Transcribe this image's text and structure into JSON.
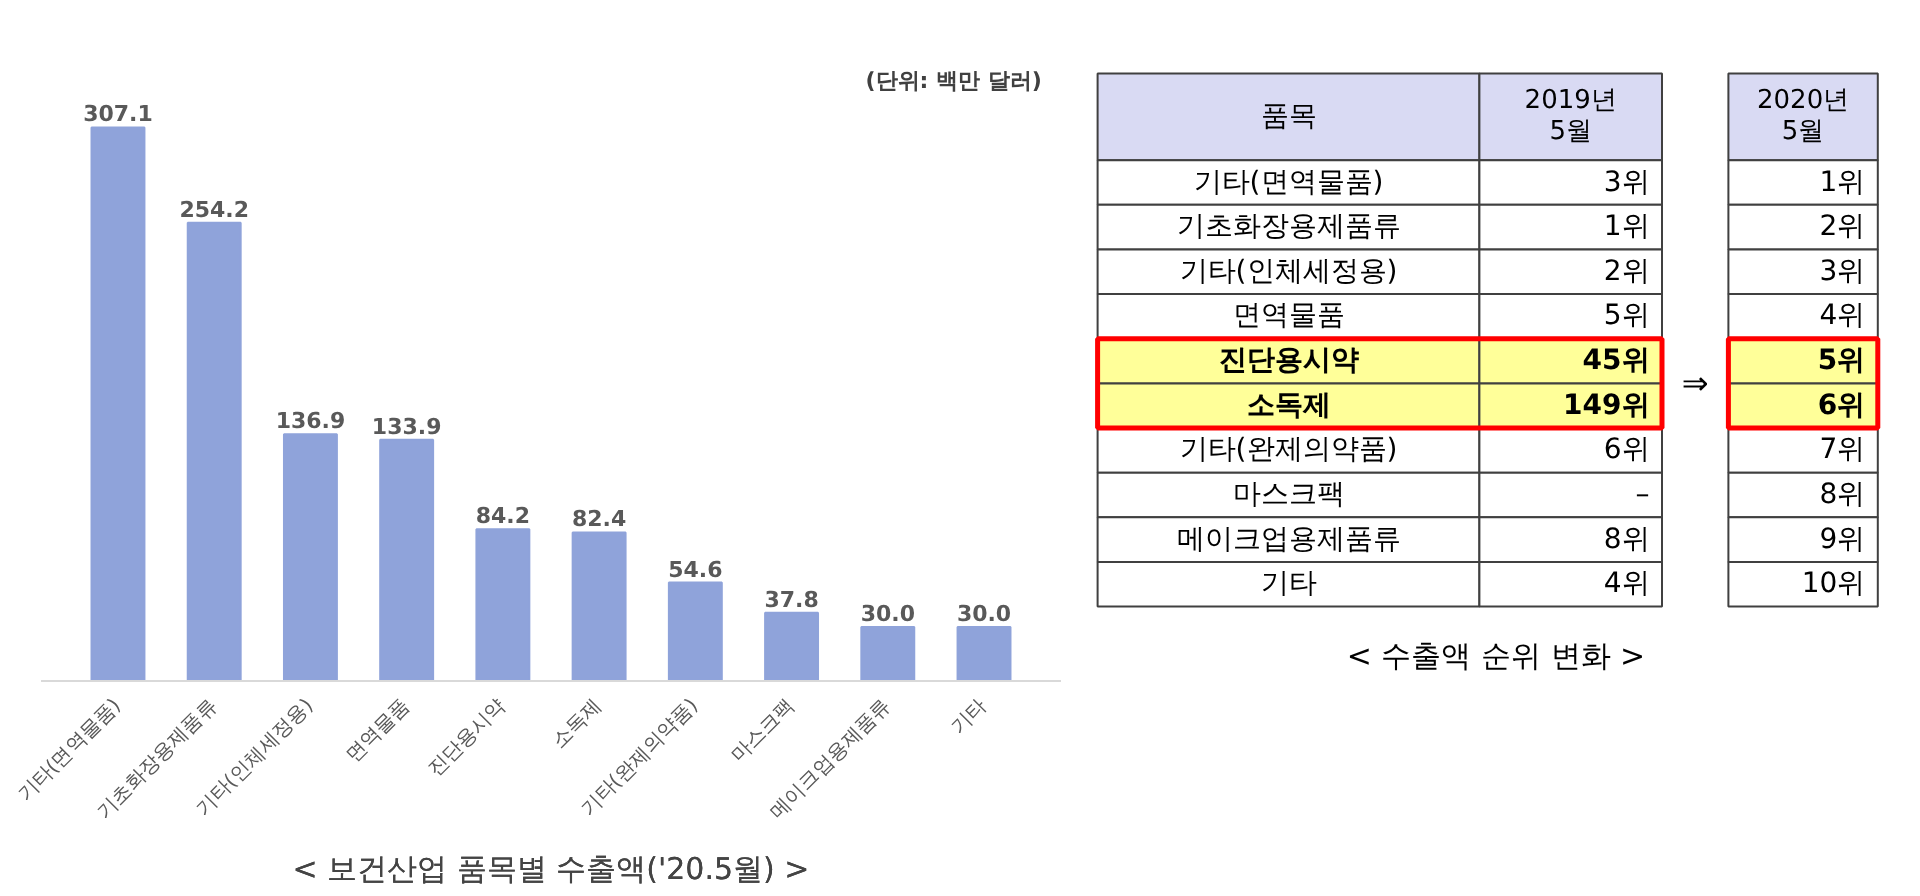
{
  "chart_data": [
    {
      "type": "bar",
      "title": "< 보건산업 품목별 수출액('20.5월) >",
      "categories": [
        "기타(면역물품)",
        "기초화장용제품류",
        "기타(인체세정용)",
        "면역물품",
        "진단용시약",
        "소독제",
        "기타(완제의약품)",
        "마스크팩",
        "메이크업용제품류",
        "기타"
      ],
      "values": [
        307.1,
        254.2,
        136.9,
        133.9,
        84.2,
        82.4,
        54.6,
        37.8,
        30.0,
        30.0
      ],
      "value_labels": [
        "307.1",
        "254.2",
        "136.9",
        "133.9",
        "84.2",
        "82.4",
        "54.6",
        "37.8",
        "30.0",
        "30.0"
      ],
      "color": "#8fa3da",
      "annotations": [
        "(단위: 백만 달러)"
      ]
    },
    {
      "type": "other",
      "title": "< 수출액 순위 변화 >",
      "xlabel": "품목",
      "categories": [
        "기타(면역물품)",
        "기초화장용제품류",
        "기타(인체세정용)",
        "면역물품",
        "진단용시약",
        "소독제",
        "기타(완제의약품)",
        "마스크팩",
        "메이크업용제품류",
        "기타"
      ],
      "colors": [
        "#ffffff",
        "#ffffff",
        "#ffffff",
        "#ffffff",
        "#ffff99",
        "#ffff99",
        "#ffffff",
        "#ffffff",
        "#ffffff",
        "#ffffff"
      ],
      "series": [
        {
          "name": "2019년 5월",
          "values": [
            3,
            1,
            2,
            5,
            45,
            149,
            6,
            null,
            8,
            4
          ],
          "colors": [
            "#ffffff",
            "#ffffff",
            "#ffffff",
            "#ffffff",
            "#ffff99",
            "#ffff99",
            "#ffffff",
            "#ffffff",
            "#ffffff",
            "#ffffff"
          ],
          "value_labels": [
            "3위",
            "1위",
            "2위",
            "5위",
            "45위",
            "149위",
            "6위",
            "–",
            "8위",
            "4위"
          ]
        },
        {
          "name": "2020년 5월",
          "values": [
            1,
            2,
            3,
            4,
            5,
            6,
            7,
            8,
            9,
            10
          ],
          "colors": [
            "#ffffff",
            "#ffffff",
            "#ffffff",
            "#ffffff",
            "#ffff99",
            "#ffff99",
            "#ffffff",
            "#ffffff",
            "#ffffff",
            "#ffffff"
          ],
          "value_labels": [
            "1위",
            "2위",
            "3위",
            "4위",
            "5위",
            "6위",
            "7위",
            "8위",
            "9위",
            "10위"
          ]
        }
      ],
      "annotations": [
        "⇒"
      ]
    }
  ]
}
